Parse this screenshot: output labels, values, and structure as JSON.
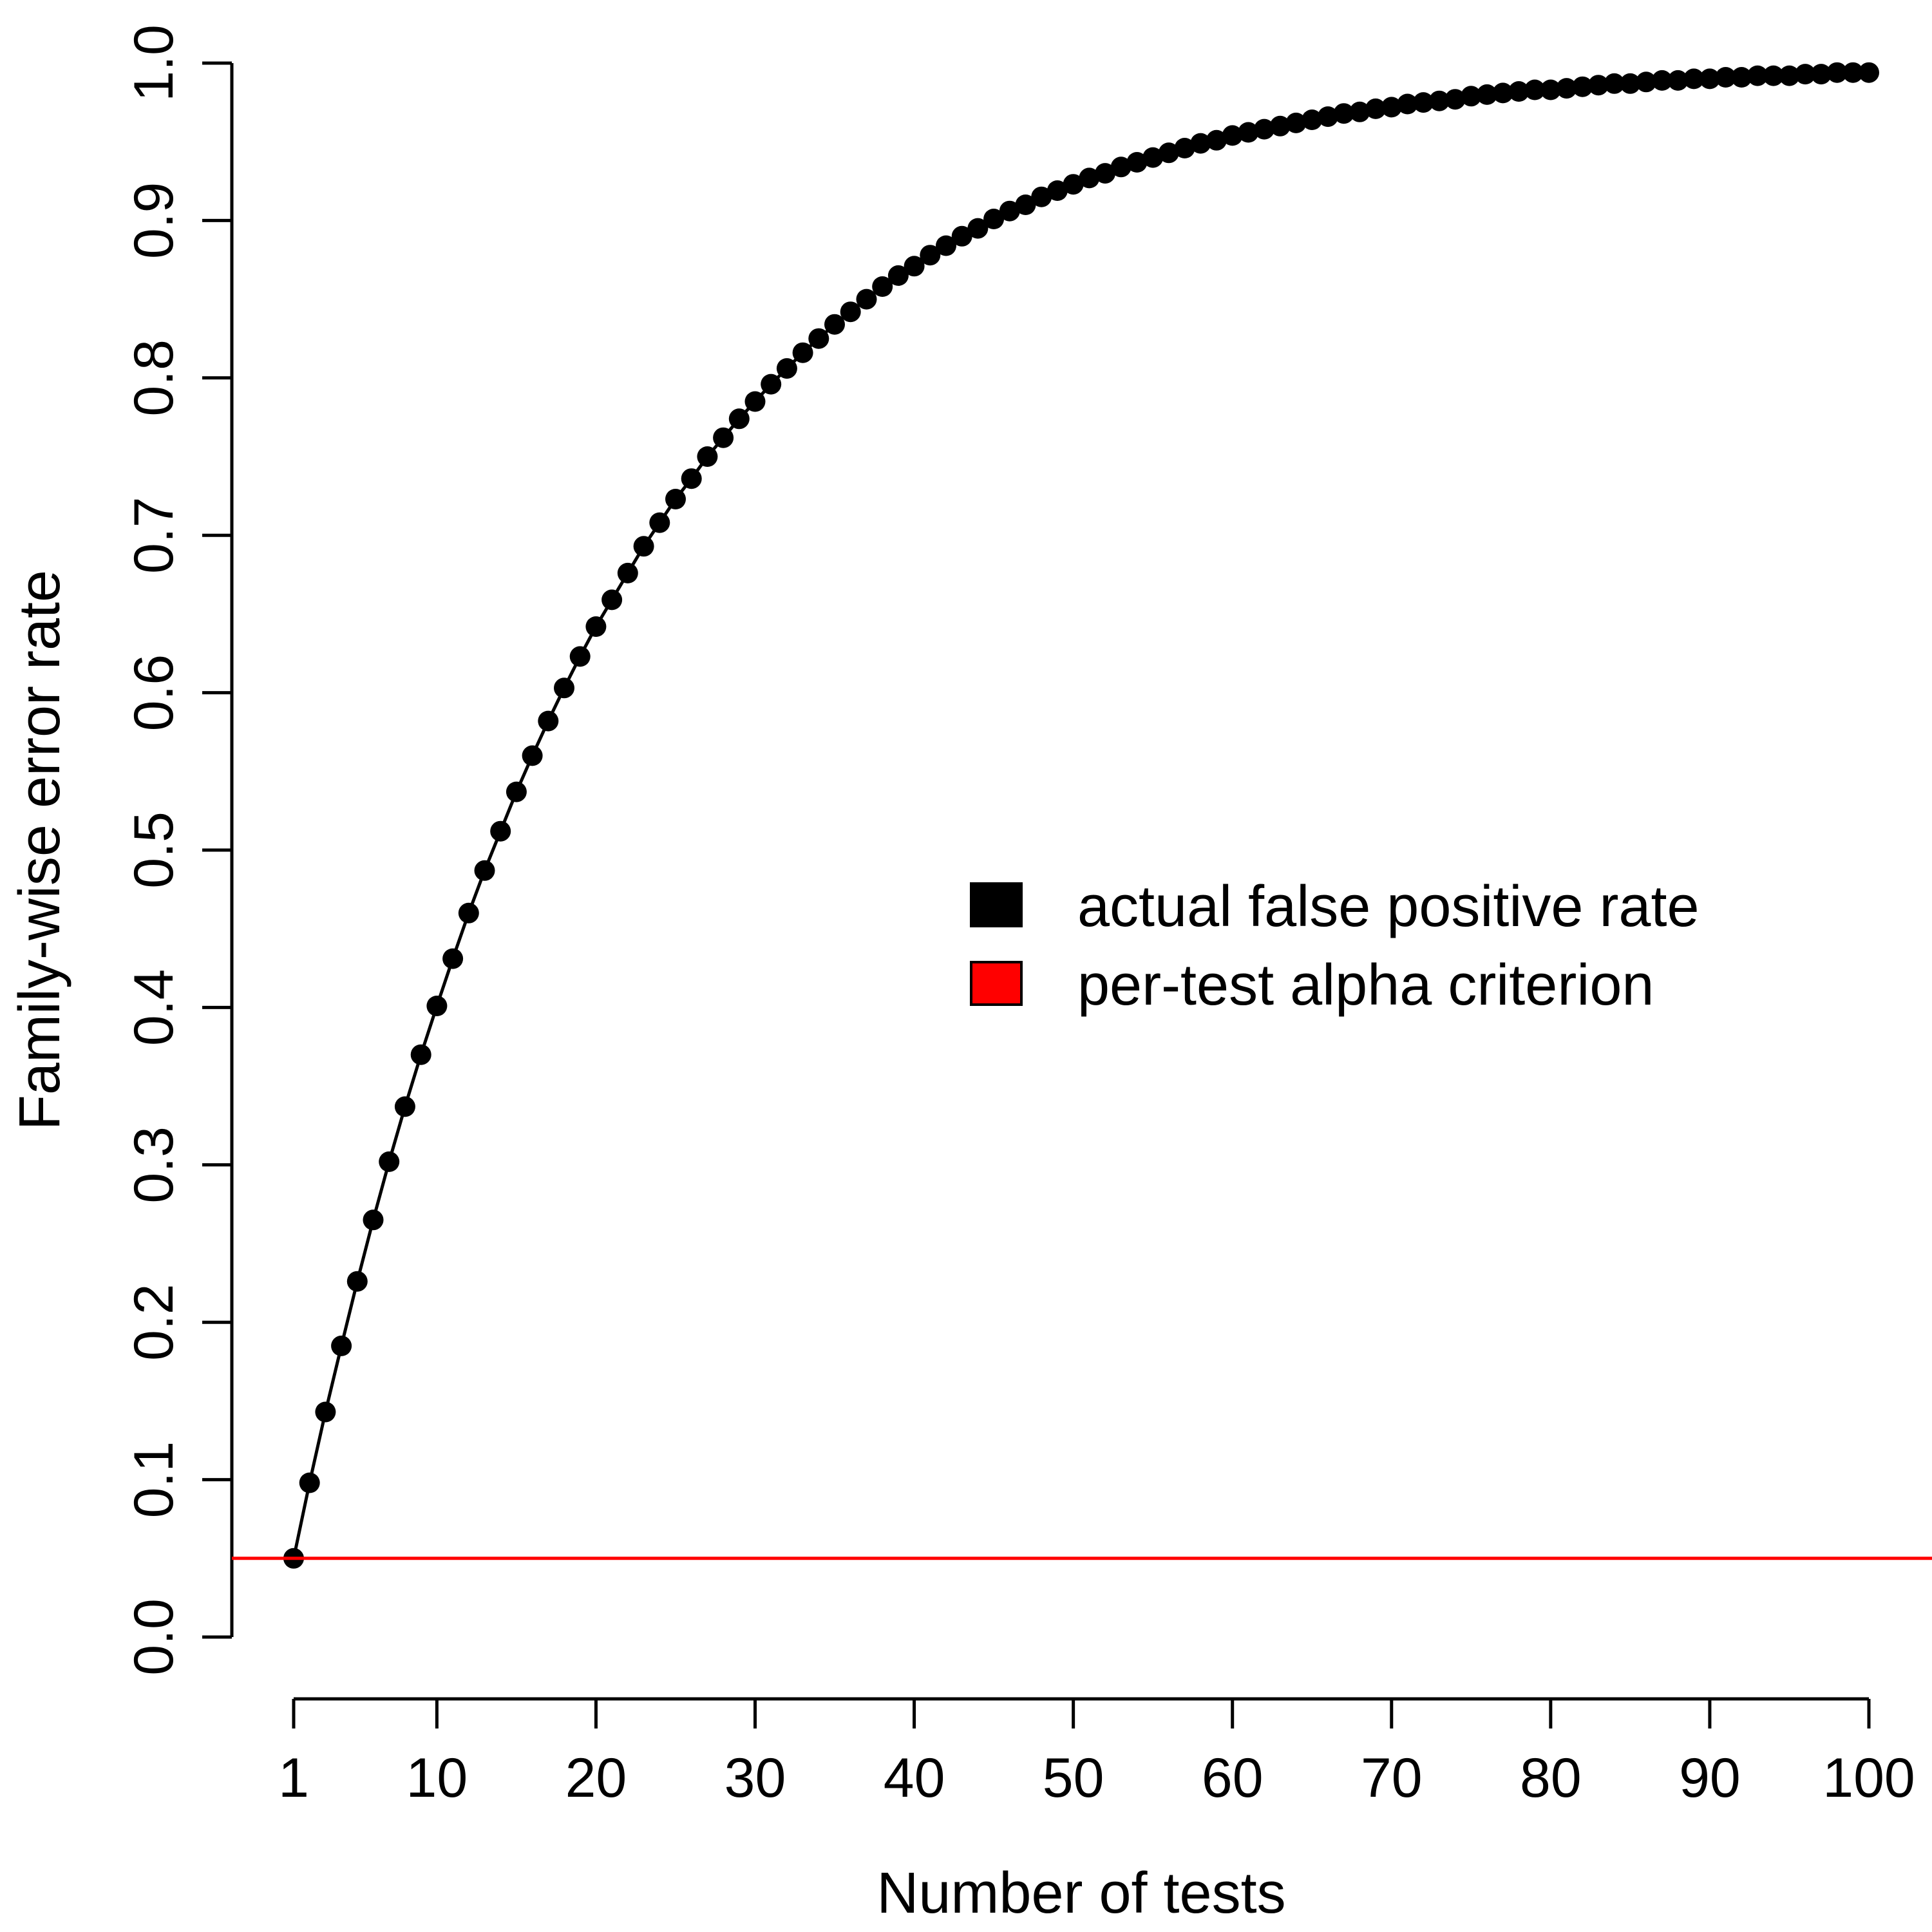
{
  "chart_data": {
    "type": "line",
    "title": "",
    "xlabel": "Number of tests",
    "ylabel": "Family-wise error rate",
    "x_ticks": [
      1,
      10,
      20,
      30,
      40,
      50,
      60,
      70,
      80,
      90,
      100
    ],
    "x_tick_labels": [
      "1",
      "10",
      "20",
      "30",
      "40",
      "50",
      "60",
      "70",
      "80",
      "90",
      "100"
    ],
    "y_ticks": [
      0.0,
      0.1,
      0.2,
      0.3,
      0.4,
      0.5,
      0.6,
      0.7,
      0.8,
      0.9,
      1.0
    ],
    "y_tick_labels": [
      "0.0",
      "0.1",
      "0.2",
      "0.3",
      "0.4",
      "0.5",
      "0.6",
      "0.7",
      "0.8",
      "0.9",
      "1.0"
    ],
    "xlim": [
      1,
      100
    ],
    "ylim": [
      0,
      1
    ],
    "grid": false,
    "legend_position": "center-right",
    "series": [
      {
        "name": "actual false positive rate",
        "color": "#000000",
        "style": "line-with-points",
        "x": [
          1,
          2,
          3,
          4,
          5,
          6,
          7,
          8,
          9,
          10,
          11,
          12,
          13,
          14,
          15,
          16,
          17,
          18,
          19,
          20,
          21,
          22,
          23,
          24,
          25,
          26,
          27,
          28,
          29,
          30,
          31,
          32,
          33,
          34,
          35,
          36,
          37,
          38,
          39,
          40,
          41,
          42,
          43,
          44,
          45,
          46,
          47,
          48,
          49,
          50,
          51,
          52,
          53,
          54,
          55,
          56,
          57,
          58,
          59,
          60,
          61,
          62,
          63,
          64,
          65,
          66,
          67,
          68,
          69,
          70,
          71,
          72,
          73,
          74,
          75,
          76,
          77,
          78,
          79,
          80,
          81,
          82,
          83,
          84,
          85,
          86,
          87,
          88,
          89,
          90,
          91,
          92,
          93,
          94,
          95,
          96,
          97,
          98,
          99,
          100
        ],
        "values": [
          0.05,
          0.098,
          0.143,
          0.185,
          0.226,
          0.265,
          0.302,
          0.337,
          0.37,
          0.401,
          0.431,
          0.46,
          0.487,
          0.512,
          0.537,
          0.56,
          0.582,
          0.603,
          0.623,
          0.642,
          0.659,
          0.676,
          0.693,
          0.708,
          0.723,
          0.736,
          0.75,
          0.762,
          0.774,
          0.785,
          0.796,
          0.806,
          0.816,
          0.825,
          0.834,
          0.842,
          0.85,
          0.858,
          0.865,
          0.871,
          0.878,
          0.884,
          0.89,
          0.895,
          0.901,
          0.906,
          0.91,
          0.915,
          0.919,
          0.923,
          0.927,
          0.93,
          0.934,
          0.937,
          0.94,
          0.943,
          0.946,
          0.949,
          0.951,
          0.954,
          0.956,
          0.958,
          0.96,
          0.962,
          0.964,
          0.966,
          0.968,
          0.969,
          0.971,
          0.972,
          0.974,
          0.975,
          0.976,
          0.977,
          0.979,
          0.98,
          0.981,
          0.982,
          0.983,
          0.983,
          0.984,
          0.985,
          0.986,
          0.987,
          0.987,
          0.988,
          0.989,
          0.989,
          0.99,
          0.99,
          0.991,
          0.991,
          0.992,
          0.992,
          0.992,
          0.993,
          0.993,
          0.994,
          0.994,
          0.994
        ]
      },
      {
        "name": "per-test alpha criterion",
        "color": "#ff0000",
        "style": "horizontal-line",
        "value": 0.05
      }
    ],
    "legend": [
      {
        "label": "actual false positive rate",
        "color": "#000000"
      },
      {
        "label": "per-test alpha criterion",
        "color": "#ff0000"
      }
    ]
  }
}
